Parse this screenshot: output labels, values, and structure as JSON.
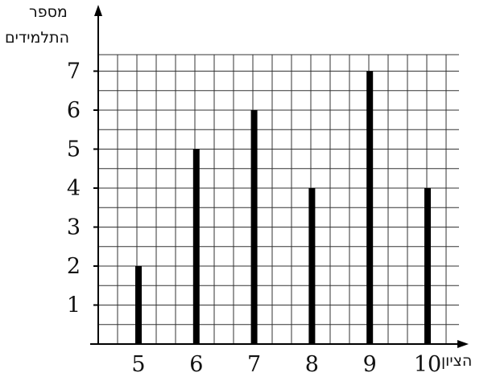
{
  "chart_data": {
    "type": "bar",
    "categories": [
      "5",
      "6",
      "7",
      "8",
      "9",
      "10"
    ],
    "values": [
      2,
      5,
      6,
      4,
      7,
      4
    ],
    "ylabel": [
      "מספר",
      "התלמידים"
    ],
    "xlabel": "הציון",
    "yticks": [
      "1",
      "2",
      "3",
      "4",
      "5",
      "6",
      "7"
    ],
    "ylim": [
      0,
      7
    ],
    "grid": true,
    "colors": {
      "bar": "#000000",
      "grid": "#333333",
      "axis": "#000000"
    }
  }
}
